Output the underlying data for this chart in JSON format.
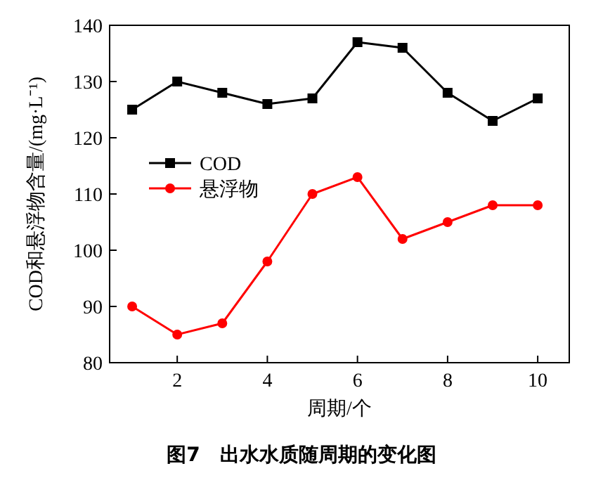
{
  "chart_data": {
    "type": "line",
    "title": "图7　出水水质随周期的变化图",
    "xlabel": "周期/个",
    "ylabel": "COD和悬浮物含量/(mg·L⁻¹)",
    "x": [
      1,
      2,
      3,
      4,
      5,
      6,
      7,
      8,
      9,
      10
    ],
    "series": [
      {
        "name": "COD",
        "color": "#000000",
        "marker": "square",
        "values": [
          125,
          130,
          128,
          126,
          127,
          137,
          136,
          128,
          123,
          127
        ]
      },
      {
        "name": "悬浮物",
        "color": "#ff0000",
        "marker": "circle",
        "values": [
          90,
          85,
          87,
          98,
          110,
          113,
          102,
          105,
          108,
          108
        ]
      }
    ],
    "xlim": [
      0.5,
      10.7
    ],
    "xticks": [
      2,
      4,
      6,
      8,
      10
    ],
    "ylim": [
      80,
      140
    ],
    "yticks": [
      80,
      90,
      100,
      110,
      120,
      130,
      140
    ],
    "grid": false,
    "legend": "left",
    "line_style": "solid"
  }
}
